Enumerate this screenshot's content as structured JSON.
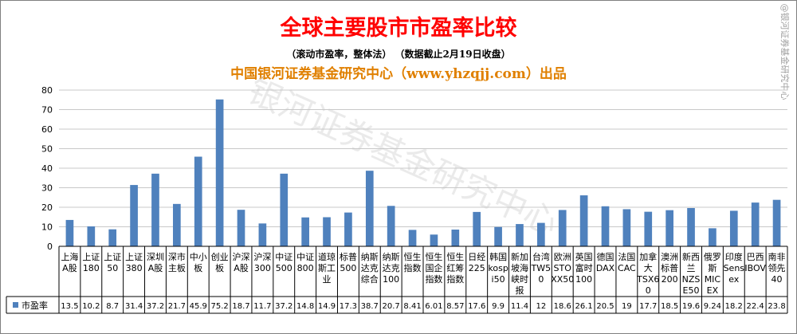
{
  "header": {
    "title": "全球主要股市市盈率比较",
    "subtitle": "（滚动市盈率，整体法）  （数据截止2月19日收盘）",
    "source": "中国银河证券基金研究中心（www.yhzqjj.com）出品",
    "watermark": "银河证券基金研究中心",
    "side_mark": "@银河证券基金研究中心"
  },
  "colors": {
    "bar": "#4f81bd",
    "title": "#ff0000",
    "source": "#e08000",
    "grid": "#c8c8c8"
  },
  "chart_data": {
    "type": "bar",
    "categories": [
      [
        "上海",
        "A股"
      ],
      [
        "上证",
        "180"
      ],
      [
        "上证",
        "50"
      ],
      [
        "上证",
        "380"
      ],
      [
        "深圳",
        "A股"
      ],
      [
        "深市",
        "主板"
      ],
      [
        "中小",
        "板"
      ],
      [
        "创业",
        "板"
      ],
      [
        "沪深",
        "A股"
      ],
      [
        "沪深",
        "300"
      ],
      [
        "中证",
        "500"
      ],
      [
        "中证",
        "800"
      ],
      [
        "道琼",
        "斯工",
        "业"
      ],
      [
        "标普",
        "500"
      ],
      [
        "纳斯",
        "达克",
        "综合"
      ],
      [
        "纳斯",
        "达克",
        "100"
      ],
      [
        "恒生",
        "指数"
      ],
      [
        "恒生",
        "国企",
        "指数"
      ],
      [
        "恒生",
        "红筹",
        "指数"
      ],
      [
        "日经",
        "225"
      ],
      [
        "韩国",
        "kosp",
        "i50"
      ],
      [
        "新加",
        "坡海",
        "峡时",
        "报"
      ],
      [
        "台湾",
        "TW5",
        "0"
      ],
      [
        "欧洲",
        "STO",
        "XX50"
      ],
      [
        "英国",
        "富时",
        "100"
      ],
      [
        "德国",
        "DAX"
      ],
      [
        "法国",
        "CAC"
      ],
      [
        "加拿",
        "大",
        "TSX6",
        "0"
      ],
      [
        "澳洲",
        "标普",
        "200"
      ],
      [
        "新西",
        "兰",
        "NZS",
        "E50"
      ],
      [
        "俄罗",
        "斯",
        "MIC",
        "EX"
      ],
      [
        "印度",
        "Sens",
        "ex"
      ],
      [
        "巴西",
        "IBOV"
      ],
      [
        "南非",
        "领先",
        "40"
      ]
    ],
    "series": [
      {
        "name": "市盈率",
        "values": [
          13.5,
          10.2,
          8.7,
          31.4,
          37.2,
          21.7,
          45.9,
          75.2,
          18.7,
          11.7,
          37.2,
          14.8,
          14.9,
          17.3,
          38.7,
          20.7,
          8.41,
          6.01,
          8.57,
          17.6,
          9.9,
          11.4,
          12,
          18.6,
          26.1,
          20.5,
          19,
          17.7,
          18.5,
          19.6,
          9.24,
          18.2,
          22.4,
          23.8
        ]
      }
    ],
    "value_labels": [
      "13.5",
      "10.2",
      "8.7",
      "31.4",
      "37.2",
      "21.7",
      "45.9",
      "75.2",
      "18.7",
      "11.7",
      "37.2",
      "14.8",
      "14.9",
      "17.3",
      "38.7",
      "20.7",
      "8.41",
      "6.01",
      "8.57",
      "17.6",
      "9.9",
      "11.4",
      "12",
      "18.6",
      "26.1",
      "20.5",
      "19",
      "17.7",
      "18.5",
      "19.6",
      "9.24",
      "18.2",
      "22.4",
      "23.8"
    ],
    "ylim": [
      0,
      80
    ],
    "yticks": [
      "0",
      "10",
      "20",
      "30",
      "40",
      "50",
      "60",
      "70",
      "80"
    ],
    "grid": true,
    "legend": "bottom-left data table"
  }
}
